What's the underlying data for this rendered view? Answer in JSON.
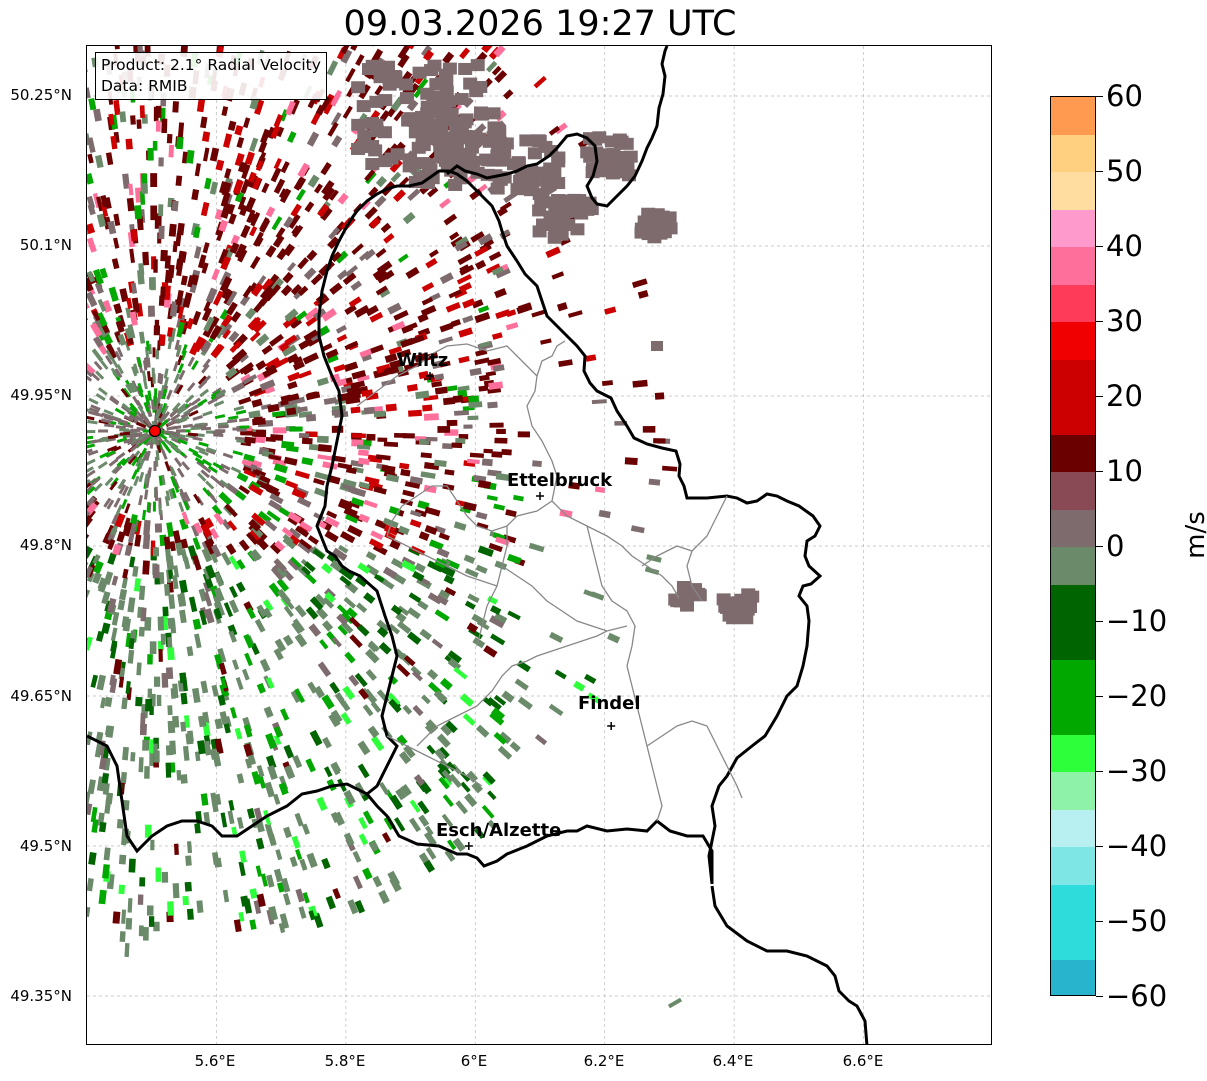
{
  "title": "09.03.2026 19:27 UTC",
  "info": {
    "product": "Product: 2.1° Radial Velocity",
    "data": "Data: RMIB"
  },
  "axes": {
    "y_ticks": [
      "50.25°N",
      "50.1°N",
      "49.95°N",
      "49.8°N",
      "49.65°N",
      "49.5°N",
      "49.35°N"
    ],
    "x_ticks": [
      "5.6°E",
      "5.8°E",
      "6°E",
      "6.2°E",
      "6.4°E",
      "6.6°E"
    ],
    "lon_range": [
      5.4,
      6.8
    ],
    "lat_range": [
      49.3,
      50.3
    ]
  },
  "cities": [
    {
      "name": "Wiltz",
      "lon": 5.93,
      "lat": 49.97
    },
    {
      "name": "Ettelbruck",
      "lon": 6.1,
      "lat": 49.85
    },
    {
      "name": "Findel",
      "lon": 6.21,
      "lat": 49.62
    },
    {
      "name": "Esch/Alzette",
      "lon": 5.99,
      "lat": 49.5
    }
  ],
  "radar_site": {
    "lon": 5.505,
    "lat": 49.915
  },
  "colorbar": {
    "label": "m/s",
    "ticks": [
      "60",
      "50",
      "40",
      "30",
      "20",
      "10",
      "0",
      "−10",
      "−20",
      "−30",
      "−40",
      "−50",
      "−60"
    ],
    "range": [
      -60,
      60
    ],
    "colors": {
      "c60": "#ff9a50",
      "c50": "#ffd080",
      "c45": "#ffdca0",
      "c40": "#ff9acd",
      "c35": "#ff6f9b",
      "c30": "#ff3b5a",
      "c25": "#f00000",
      "c20": "#cc0000",
      "c10": "#6b0000",
      "c5": "#8a4a55",
      "c0": "#7e6b6e",
      "cm5": "#6a8a6a",
      "cm10": "#006400",
      "cm20": "#00a800",
      "cm30": "#2dff3a",
      "cm35": "#8ef2a8",
      "cm40": "#b8eff0",
      "cm45": "#7fe6e6",
      "cm50": "#2edcdc",
      "cm55": "#27b4cc",
      "cm60": "#1e7fc4"
    }
  }
}
